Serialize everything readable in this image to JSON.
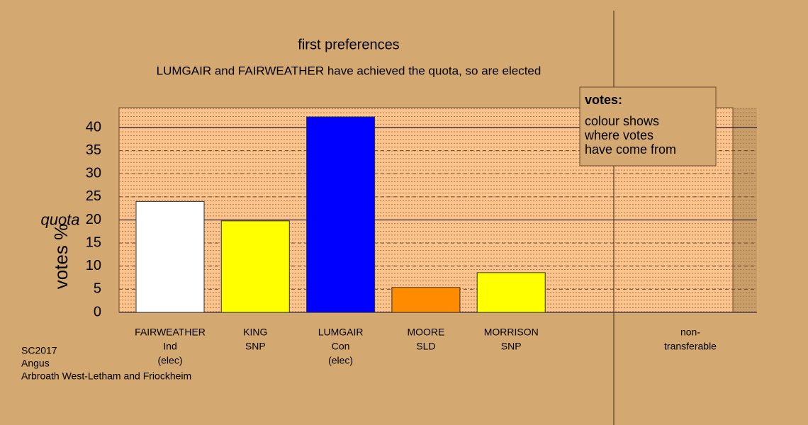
{
  "chart_data": {
    "type": "bar",
    "title": "first preferences",
    "subtitle": "LUMGAIR and FAIRWEATHER have achieved the quota, so are elected",
    "y_label": "votes %",
    "quota_label": "quota",
    "quota": 20,
    "categories": [
      [
        "FAIRWEATHER",
        "Ind",
        "(elec)"
      ],
      [
        "KING",
        "SNP"
      ],
      [
        "LUMGAIR",
        "Con",
        "(elec)"
      ],
      [
        "MOORE",
        "SLD"
      ],
      [
        "MORRISON",
        "SNP"
      ],
      [
        "non-",
        "transferable"
      ]
    ],
    "values": [
      24,
      19.8,
      42.3,
      5.4,
      8.6,
      null
    ],
    "colors": [
      "#ffffff",
      "#ffff00",
      "#0000ff",
      "#ff8c00",
      "#ffff00",
      null
    ],
    "ylim": [
      0,
      44.3
    ],
    "yticks": [
      0,
      5,
      10,
      15,
      20,
      25,
      30,
      35,
      40
    ],
    "legend": {
      "title": "votes:",
      "lines": [
        "colour shows",
        "where votes",
        "have come from"
      ]
    },
    "footer": [
      "SC2017",
      "Angus",
      "Arbroath West-Letham and Friockheim"
    ]
  }
}
